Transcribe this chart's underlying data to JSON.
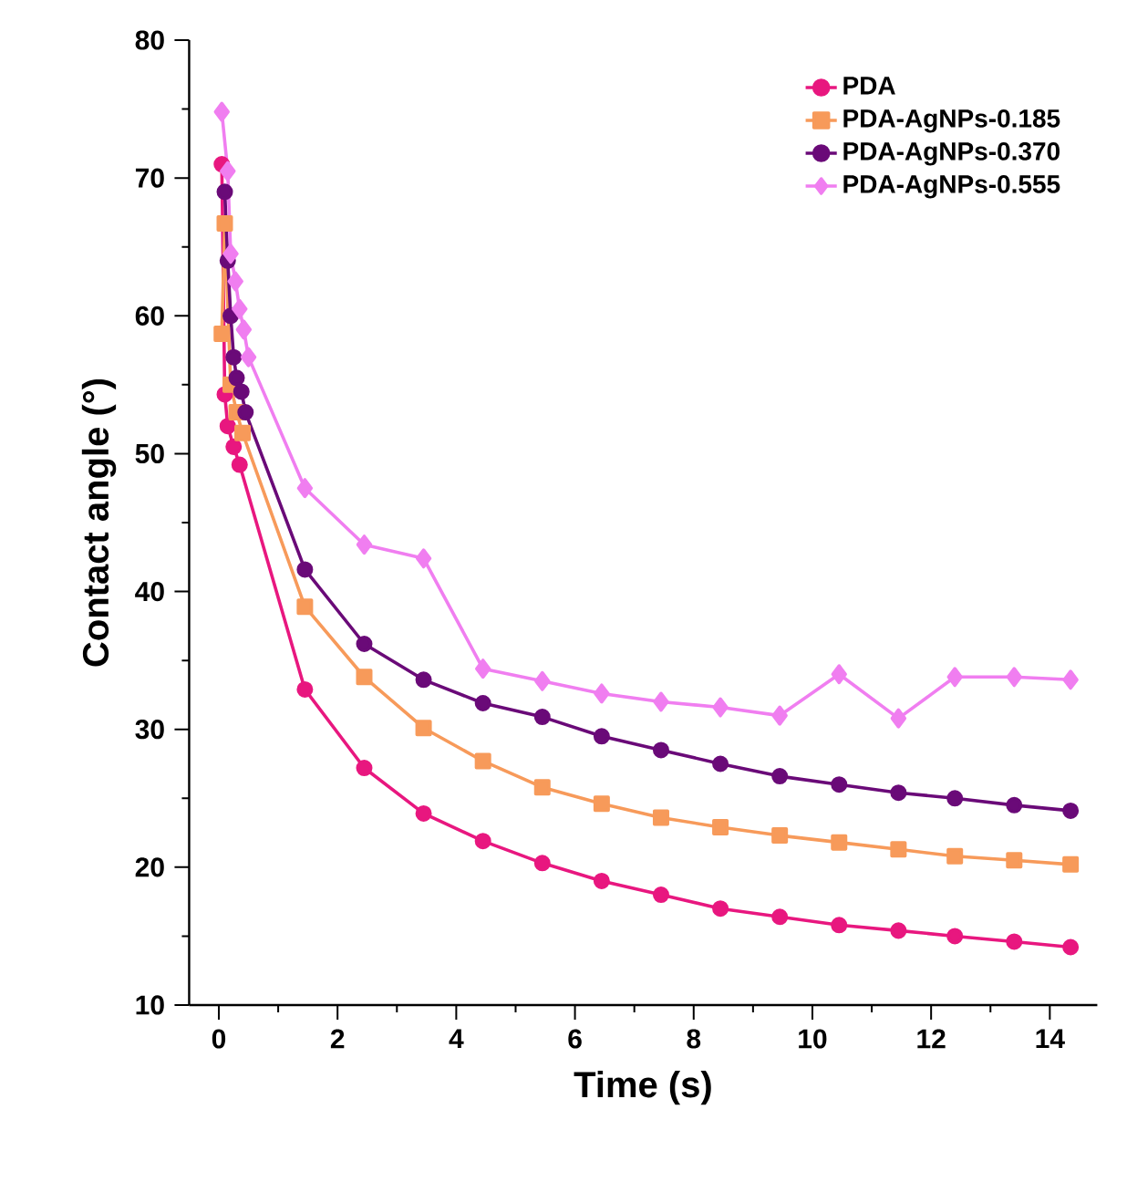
{
  "chart_data": {
    "type": "line",
    "xlabel": "Time (s)",
    "ylabel": "Contact angle (°)",
    "xlim": [
      -0.5,
      14.8
    ],
    "ylim": [
      10,
      80
    ],
    "xticks": [
      0,
      2,
      4,
      6,
      8,
      10,
      12,
      14
    ],
    "yticks": [
      10,
      20,
      30,
      40,
      50,
      60,
      70,
      80
    ],
    "legend": "top right",
    "grid": false,
    "series": [
      {
        "name": "PDA",
        "color": "#e8177f",
        "marker": "circle",
        "x": [
          0.05,
          0.1,
          0.15,
          0.25,
          0.35,
          1.45,
          2.45,
          3.45,
          4.45,
          5.45,
          6.45,
          7.45,
          8.45,
          9.45,
          10.45,
          11.45,
          12.4,
          13.4,
          14.35
        ],
        "values": [
          71,
          54.3,
          52,
          50.5,
          49.2,
          32.9,
          27.2,
          23.9,
          21.9,
          20.3,
          19,
          18,
          17,
          16.4,
          15.8,
          15.4,
          15,
          14.6,
          14.2
        ]
      },
      {
        "name": "PDA-AgNPs-0.185",
        "color": "#f79a5a",
        "marker": "square",
        "x": [
          0.05,
          0.1,
          0.2,
          0.3,
          0.4,
          1.45,
          2.45,
          3.45,
          4.45,
          5.45,
          6.45,
          7.45,
          8.45,
          9.45,
          10.45,
          11.45,
          12.4,
          13.4,
          14.35
        ],
        "values": [
          58.7,
          66.7,
          55,
          53,
          51.5,
          38.9,
          33.8,
          30.1,
          27.7,
          25.8,
          24.6,
          23.6,
          22.9,
          22.3,
          21.8,
          21.3,
          20.8,
          20.5,
          20.2
        ]
      },
      {
        "name": "PDA-AgNPs-0.370",
        "color": "#6a0a78",
        "marker": "circle",
        "x": [
          0.1,
          0.15,
          0.2,
          0.25,
          0.3,
          0.38,
          0.45,
          1.45,
          2.45,
          3.45,
          4.45,
          5.45,
          6.45,
          7.45,
          8.45,
          9.45,
          10.45,
          11.45,
          12.4,
          13.4,
          14.35
        ],
        "values": [
          69,
          64,
          60,
          57,
          55.5,
          54.5,
          53,
          41.6,
          36.2,
          33.6,
          31.9,
          30.9,
          29.5,
          28.5,
          27.5,
          26.6,
          26,
          25.4,
          25,
          24.5,
          24.1
        ]
      },
      {
        "name": "PDA-AgNPs-0.555",
        "color": "#f07ef0",
        "marker": "diamond",
        "x": [
          0.05,
          0.15,
          0.2,
          0.28,
          0.35,
          0.42,
          0.5,
          1.45,
          2.45,
          3.45,
          4.45,
          5.45,
          6.45,
          7.45,
          8.45,
          9.45,
          10.45,
          11.45,
          12.4,
          13.4,
          14.35
        ],
        "values": [
          74.8,
          70.5,
          64.5,
          62.5,
          60.5,
          59,
          57,
          47.5,
          43.4,
          42.4,
          34.4,
          33.5,
          32.6,
          32,
          31.6,
          31,
          34,
          30.8,
          33.8,
          33.8,
          33.6
        ]
      }
    ]
  }
}
